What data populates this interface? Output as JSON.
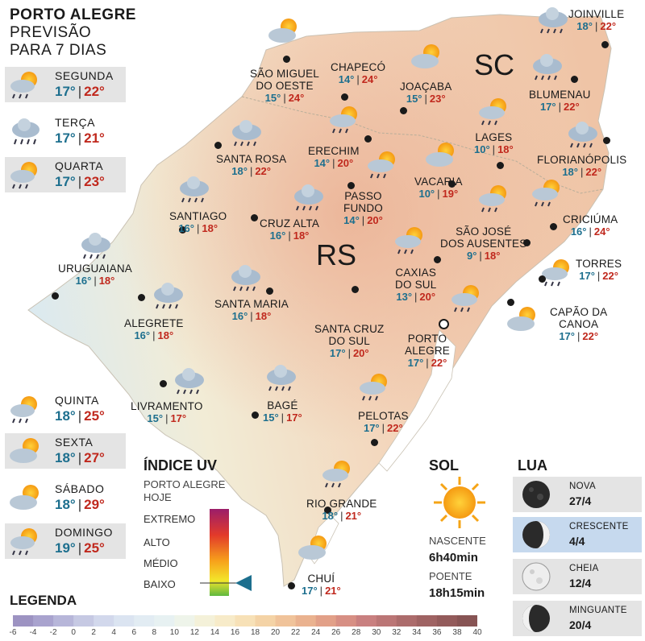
{
  "header": {
    "line1": "PORTO ALEGRE",
    "line2": "PREVISÃO",
    "line3": "PARA 7 DIAS"
  },
  "days": [
    {
      "name": "SEGUNDA",
      "min": "17°",
      "max": "22°",
      "icon": "sun-cloud-rain-icon"
    },
    {
      "name": "TERÇA",
      "min": "17°",
      "max": "21°",
      "icon": "cloud-rain-icon"
    },
    {
      "name": "QUARTA",
      "min": "17°",
      "max": "23°",
      "icon": "sun-cloud-rain-icon"
    },
    {
      "name": "QUINTA",
      "min": "18°",
      "max": "25°",
      "icon": "sun-cloud-rain-icon"
    },
    {
      "name": "SEXTA",
      "min": "18°",
      "max": "27°",
      "icon": "sun-cloud-icon"
    },
    {
      "name": "SÁBADO",
      "min": "18°",
      "max": "29°",
      "icon": "sun-cloud-icon"
    },
    {
      "name": "DOMINGO",
      "min": "19°",
      "max": "25°",
      "icon": "sun-cloud-rain-icon"
    }
  ],
  "states": {
    "sc": "SC",
    "rs": "RS"
  },
  "cities": [
    {
      "line1": "SÃO MIGUEL",
      "line2": "DO OESTE",
      "min": "15°",
      "max": "24°"
    },
    {
      "line1": "CHAPECÓ",
      "line2": "",
      "min": "14°",
      "max": "24°"
    },
    {
      "line1": "JOAÇABA",
      "line2": "",
      "min": "15°",
      "max": "23°"
    },
    {
      "line1": "JOINVILLE",
      "line2": "",
      "min": "18°",
      "max": "22°"
    },
    {
      "line1": "BLUMENAU",
      "line2": "",
      "min": "17°",
      "max": "22°"
    },
    {
      "line1": "LAGES",
      "line2": "",
      "min": "10°",
      "max": "18°"
    },
    {
      "line1": "FLORIANÓPOLIS",
      "line2": "",
      "min": "18°",
      "max": "22°"
    },
    {
      "line1": "SANTA ROSA",
      "line2": "",
      "min": "18°",
      "max": "22°"
    },
    {
      "line1": "ERECHIM",
      "line2": "",
      "min": "14°",
      "max": "20°"
    },
    {
      "line1": "PASSO",
      "line2": "FUNDO",
      "min": "14°",
      "max": "20°"
    },
    {
      "line1": "VACARIA",
      "line2": "",
      "min": "10°",
      "max": "19°"
    },
    {
      "line1": "SANTIAGO",
      "line2": "",
      "min": "16°",
      "max": "18°"
    },
    {
      "line1": "CRUZ ALTA",
      "line2": "",
      "min": "16°",
      "max": "18°"
    },
    {
      "line1": "CRICIÚMA",
      "line2": "",
      "min": "16°",
      "max": "24°"
    },
    {
      "line1": "SÃO JOSÉ",
      "line2": "DOS AUSENTES",
      "min": "9°",
      "max": "18°"
    },
    {
      "line1": "URUGUAIANA",
      "line2": "",
      "min": "16°",
      "max": "18°"
    },
    {
      "line1": "TORRES",
      "line2": "",
      "min": "17°",
      "max": "22°"
    },
    {
      "line1": "CAXIAS",
      "line2": "DO SUL",
      "min": "13°",
      "max": "20°"
    },
    {
      "line1": "SANTA MARIA",
      "line2": "",
      "min": "16°",
      "max": "18°"
    },
    {
      "line1": "ALEGRETE",
      "line2": "",
      "min": "16°",
      "max": "18°"
    },
    {
      "line1": "CAPÃO DA",
      "line2": "CANOA",
      "min": "17°",
      "max": "22°"
    },
    {
      "line1": "SANTA CRUZ",
      "line2": "DO SUL",
      "min": "17°",
      "max": "20°"
    },
    {
      "line1": "PORTO",
      "line2": "ALEGRE",
      "min": "17°",
      "max": "22°"
    },
    {
      "line1": "LIVRAMENTO",
      "line2": "",
      "min": "15°",
      "max": "17°"
    },
    {
      "line1": "BAGÉ",
      "line2": "",
      "min": "15°",
      "max": "17°"
    },
    {
      "line1": "PELOTAS",
      "line2": "",
      "min": "17°",
      "max": "22°"
    },
    {
      "line1": "RIO GRANDE",
      "line2": "",
      "min": "18°",
      "max": "21°"
    },
    {
      "line1": "CHUÍ",
      "line2": "",
      "min": "17°",
      "max": "21°"
    }
  ],
  "uv": {
    "title": "ÍNDICE UV",
    "sub1": "PORTO ALEGRE",
    "sub2": "HOJE",
    "levels": [
      "EXTREMO",
      "ALTO",
      "MÉDIO",
      "BAIXO"
    ],
    "current": "BAIXO",
    "colors": [
      "#9b1d6a",
      "#e23a2a",
      "#f7a21b",
      "#f3e52a",
      "#5fb840"
    ]
  },
  "legend": {
    "title": "LEGENDA",
    "ticks": [
      "-6",
      "-4",
      "-2",
      "0",
      "2",
      "4",
      "6",
      "8",
      "10",
      "12",
      "14",
      "16",
      "18",
      "20",
      "22",
      "24",
      "26",
      "28",
      "30",
      "32",
      "34",
      "36",
      "38",
      "40"
    ],
    "colors": [
      "#9d93c2",
      "#a9a3ce",
      "#b7b6d9",
      "#c6c9e3",
      "#d2d8ec",
      "#dbe4f1",
      "#e2ecf3",
      "#e7f1f2",
      "#eef4ea",
      "#f4f1d9",
      "#f7ebc9",
      "#f7e1b7",
      "#f4d3a6",
      "#f0c39a",
      "#eab28f",
      "#e2a088",
      "#d78f84",
      "#c98080",
      "#bb7676",
      "#ac6c6c",
      "#9f6363",
      "#935b5b",
      "#875454"
    ]
  },
  "sol": {
    "title": "SOL",
    "rise_label": "NASCENTE",
    "rise": "6h40min",
    "set_label": "POENTE",
    "set": "18h15min",
    "icon": "sun-icon"
  },
  "lua": {
    "title": "LUA",
    "phases": [
      {
        "name": "NOVA",
        "date": "27/4",
        "icon": "new-moon-icon"
      },
      {
        "name": "CRESCENTE",
        "date": "4/4",
        "icon": "waxing-moon-icon",
        "highlight": true
      },
      {
        "name": "CHEIA",
        "date": "12/4",
        "icon": "full-moon-icon"
      },
      {
        "name": "MINGUANTE",
        "date": "20/4",
        "icon": "waning-moon-icon"
      }
    ]
  }
}
